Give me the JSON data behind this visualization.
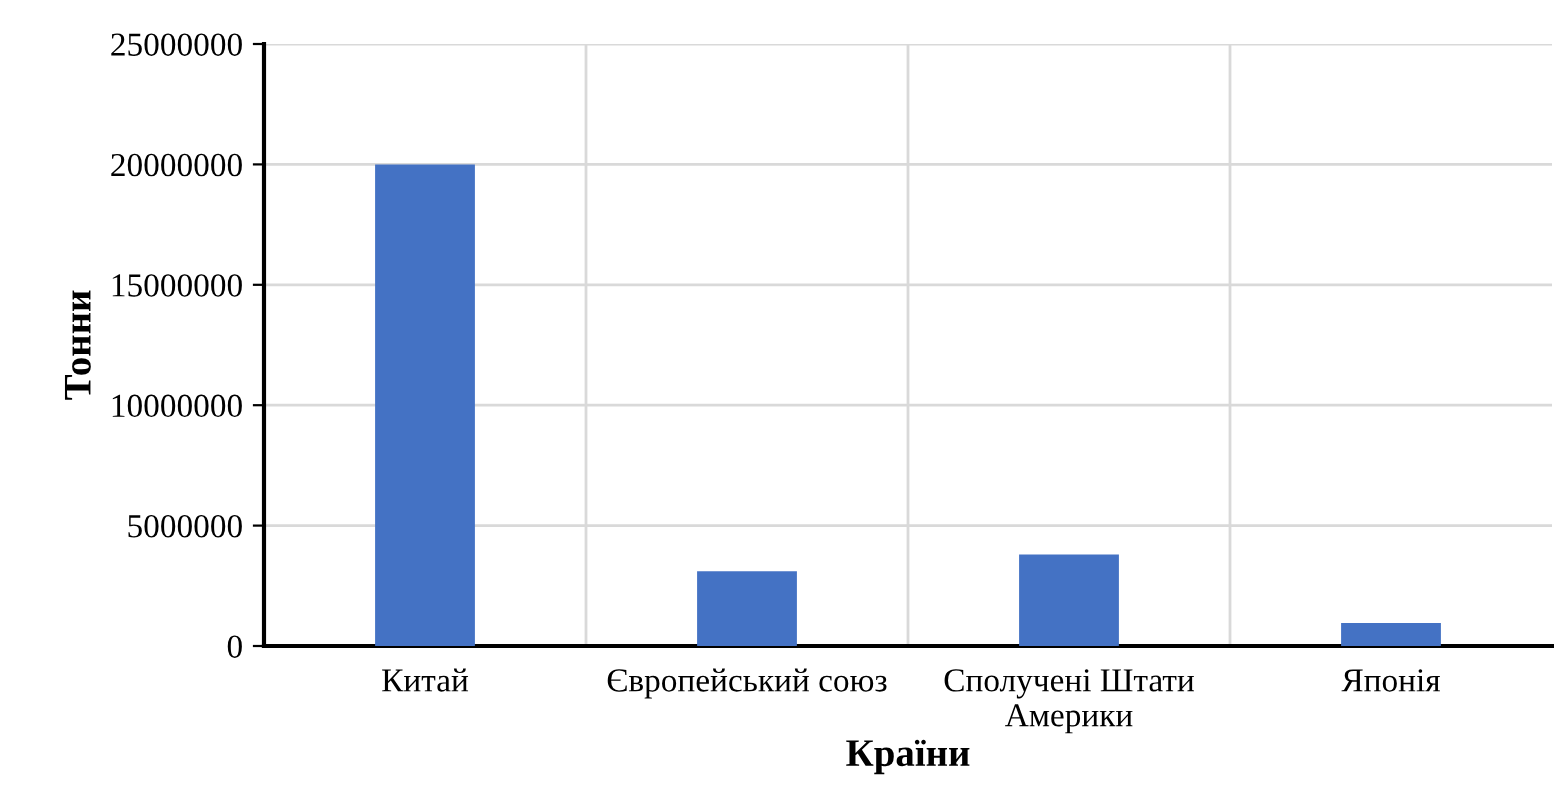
{
  "chart_data": {
    "type": "bar",
    "xlabel": "Країни",
    "ylabel": "Тонни",
    "categories": [
      "Китай",
      "Європейський союз",
      "Сполучені Штати Америки",
      "Японія"
    ],
    "values": [
      20000000,
      3100000,
      3800000,
      950000
    ],
    "color": "#4472c4",
    "ylim": [
      0,
      25000000
    ],
    "yticks": [
      0,
      5000000,
      10000000,
      15000000,
      20000000,
      25000000
    ],
    "grid": true
  }
}
